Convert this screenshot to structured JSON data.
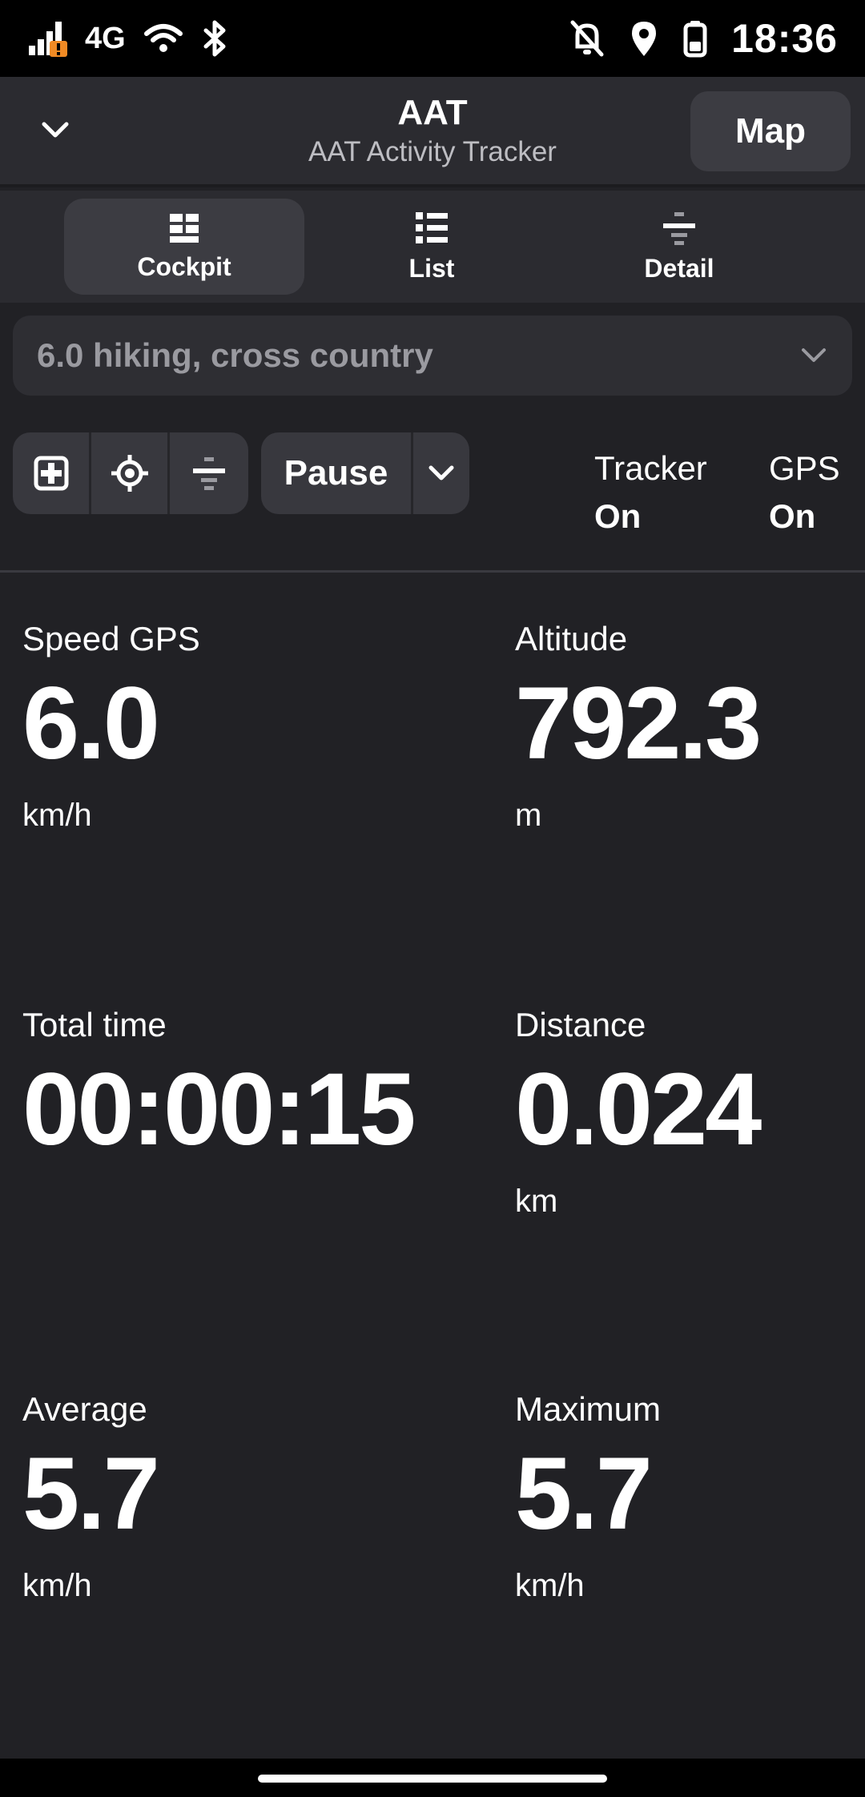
{
  "status_bar": {
    "network": "4G",
    "time": "18:36",
    "icons": [
      "signal-icon",
      "wifi-icon",
      "bluetooth-icon",
      "notifications-off-icon",
      "location-icon",
      "battery-icon"
    ]
  },
  "header": {
    "title": "AAT",
    "subtitle": "AAT Activity Tracker",
    "map_label": "Map"
  },
  "tabs": [
    {
      "label": "Cockpit",
      "icon": "cockpit-icon",
      "active": true
    },
    {
      "label": "List",
      "icon": "list-icon",
      "active": false
    },
    {
      "label": "Detail",
      "icon": "detail-icon",
      "active": false
    }
  ],
  "activity": {
    "selected": "6.0 hiking, cross country"
  },
  "toolbar": {
    "pause_label": "Pause",
    "tracker_label": "Tracker",
    "tracker_value": "On",
    "gps_label": "GPS",
    "gps_value": "On"
  },
  "cockpit": [
    {
      "label": "Speed GPS",
      "value": "6.0",
      "unit": "km/h"
    },
    {
      "label": "Altitude",
      "value": "792.3",
      "unit": "m"
    },
    {
      "label": "Total time",
      "value": "00:00:15",
      "unit": ""
    },
    {
      "label": "Distance",
      "value": "0.024",
      "unit": "km"
    },
    {
      "label": "Average",
      "value": "5.7",
      "unit": "km/h"
    },
    {
      "label": "Maximum",
      "value": "5.7",
      "unit": "km/h"
    }
  ],
  "colors": {
    "background": "#212125",
    "surface": "#2b2b30",
    "button": "#3c3c42",
    "accent_warning": "#f08a24"
  }
}
